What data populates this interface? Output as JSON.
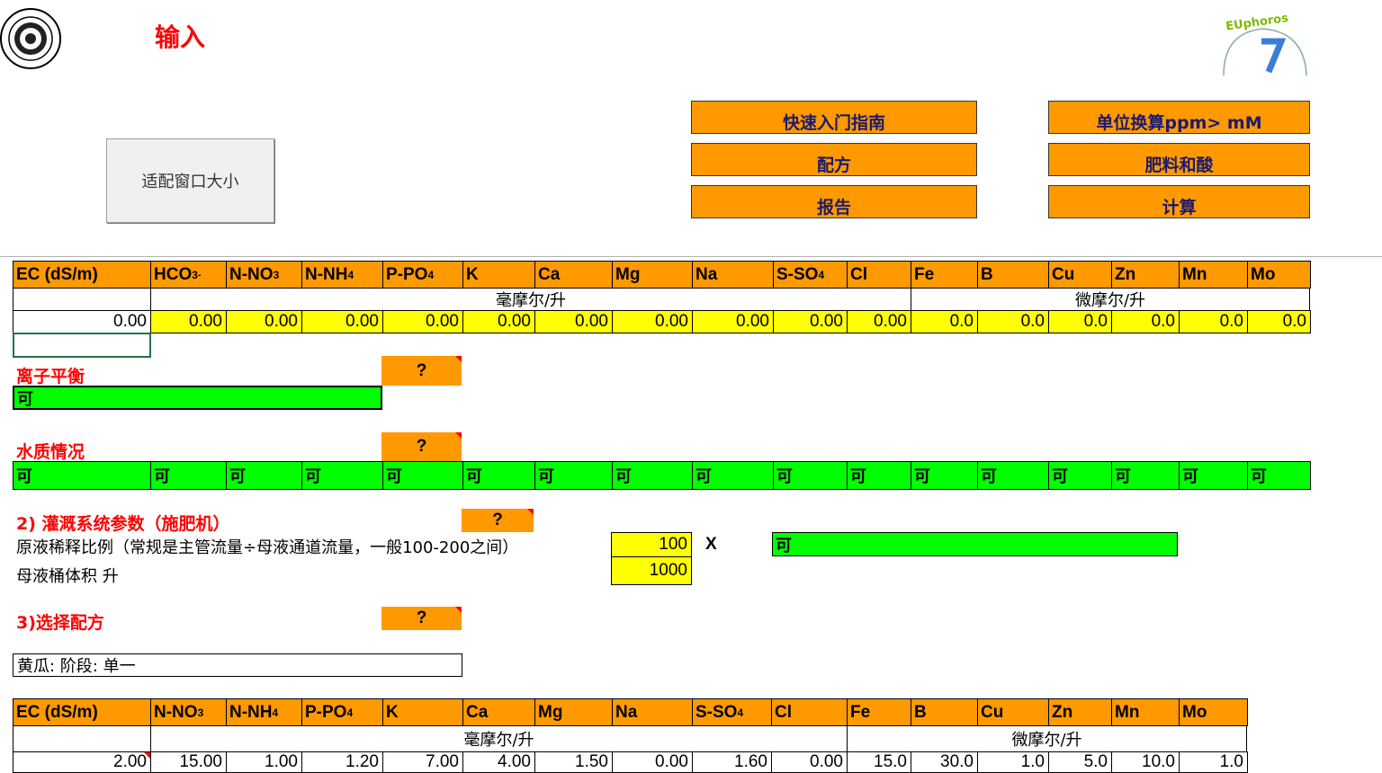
{
  "title": "输入",
  "logo_text": "EUphoros",
  "buttons": {
    "fit_window": "适配窗口大小",
    "quick_start": "快速入门指南",
    "recipe": "配方",
    "report": "报告",
    "unit_convert": "单位换算ppm> mM",
    "fertilizers": "肥料和酸",
    "calculate": "计算"
  },
  "water": {
    "headers": [
      "EC (dS/m)",
      "HCO",
      "N-NO",
      "N-NH",
      "P-PO",
      "K",
      "Ca",
      "Mg",
      "Na",
      "S-SO",
      "Cl",
      "Fe",
      "B",
      "Cu",
      "Zn",
      "Mn",
      "Mo"
    ],
    "header_subs": [
      "",
      "3",
      "3",
      "4",
      "4",
      "",
      "",
      "",
      "",
      "4",
      "",
      "",
      "",
      "",
      "",
      "",
      ""
    ],
    "header_sups": [
      "",
      "-",
      "",
      "",
      "",
      "",
      "",
      "",
      "",
      "",
      "",
      "",
      "",
      "",
      "",
      "",
      ""
    ],
    "unit_macro": "毫摩尔/升",
    "unit_micro": "微摩尔/升",
    "values": [
      "0.00",
      "0.00",
      "0.00",
      "0.00",
      "0.00",
      "0.00",
      "0.00",
      "0.00",
      "0.00",
      "0.00",
      "0.00",
      "0.0",
      "0.0",
      "0.0",
      "0.0",
      "0.0",
      "0.0"
    ]
  },
  "ion_balance": {
    "label": "离子平衡",
    "help": "?",
    "status": "可"
  },
  "water_quality": {
    "label": "水质情况",
    "help": "?",
    "statuses": [
      "可",
      "可",
      "可",
      "可",
      "可",
      "可",
      "可",
      "可",
      "可",
      "可",
      "可",
      "可",
      "可",
      "可",
      "可",
      "可",
      "可"
    ]
  },
  "irrigation": {
    "label": "2) 灌溉系统参数（施肥机）",
    "help": "?",
    "dilution_label": "原液稀释比例（常规是主管流量÷母液通道流量，一般100-200之间）",
    "dilution_value": "100",
    "x_label": "X",
    "dilution_status": "可",
    "tank_label": "母液桶体积 升",
    "tank_value": "1000"
  },
  "recipe": {
    "label": "3)选择配方",
    "help": "?",
    "selected": "黄瓜: 阶段: 单一",
    "headers": [
      "EC (dS/m)",
      "N-NO",
      "N-NH",
      "P-PO",
      "K",
      "Ca",
      "Mg",
      "Na",
      "S-SO",
      "Cl",
      "Fe",
      "B",
      "Cu",
      "Zn",
      "Mn",
      "Mo"
    ],
    "header_subs": [
      "",
      "3",
      "4",
      "4",
      "",
      "",
      "",
      "",
      "4",
      "",
      "",
      "",
      "",
      "",
      "",
      ""
    ],
    "unit_macro": "毫摩尔/升",
    "unit_micro": "微摩尔/升",
    "values": [
      "2.00",
      "15.00",
      "1.00",
      "1.20",
      "7.00",
      "4.00",
      "1.50",
      "0.00",
      "1.60",
      "0.00",
      "15.0",
      "30.0",
      "1.0",
      "5.0",
      "10.0",
      "1.0"
    ]
  }
}
